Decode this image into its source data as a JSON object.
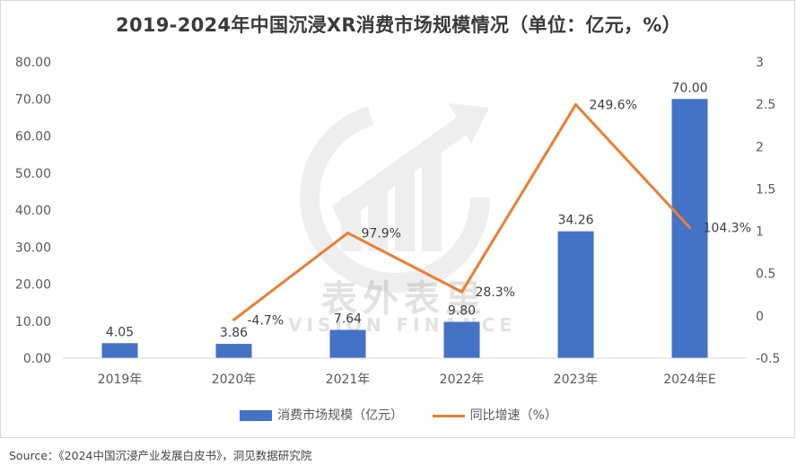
{
  "title": "2019-2024年中国沉浸XR消费市场规模情况（单位：亿元，%）",
  "watermark": {
    "text": "表外表里",
    "subtext": "VISION FINANCE"
  },
  "source": "Source：《2024中国沉浸产业发展白皮书》，洞见数据研究院",
  "legend": {
    "bar_label": "消费市场规模（亿元）",
    "line_label": "同比增速（%）"
  },
  "colors": {
    "bar": "#4472c4",
    "line": "#ed7d31",
    "grid": "#d9d9d9"
  },
  "chart_data": {
    "type": "bar",
    "categories": [
      "2019年",
      "2020年",
      "2021年",
      "2022年",
      "2023年",
      "2024年E"
    ],
    "series": [
      {
        "name": "消费市场规模（亿元）",
        "type": "bar",
        "axis": "left",
        "values": [
          4.05,
          3.86,
          7.64,
          9.8,
          34.26,
          70.0
        ],
        "labels": [
          "4.05",
          "3.86",
          "7.64",
          "9.80",
          "34.26",
          "70.00"
        ]
      },
      {
        "name": "同比增速（%）",
        "type": "line",
        "axis": "right",
        "values": [
          null,
          -0.047,
          0.979,
          0.283,
          2.496,
          1.043
        ],
        "labels": [
          null,
          "-4.7%",
          "97.9%",
          "28.3%",
          "249.6%",
          "104.3%"
        ]
      }
    ],
    "y_left": {
      "min": 0,
      "max": 80,
      "step": 10,
      "ticks": [
        "0.00",
        "10.00",
        "20.00",
        "30.00",
        "40.00",
        "50.00",
        "60.00",
        "70.00",
        "80.00"
      ]
    },
    "y_right": {
      "min": -0.5,
      "max": 3,
      "step": 0.5,
      "ticks": [
        "-0.5",
        "0",
        "0.5",
        "1",
        "1.5",
        "2",
        "2.5",
        "3"
      ]
    },
    "grid": false,
    "legend_position": "bottom"
  }
}
